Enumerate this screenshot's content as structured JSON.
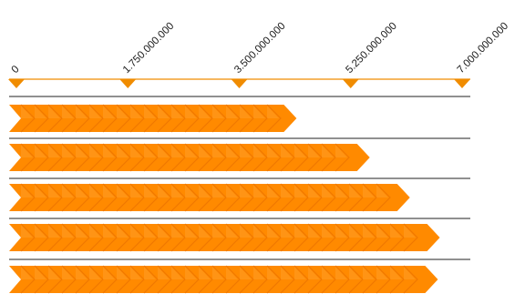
{
  "colors": {
    "bar": "#ff8a00",
    "bar_stroke": "#f07800",
    "chevron_light": "#ffa53c",
    "axis": "#f08c00",
    "rule": "#222222",
    "text": "#1a1a1a"
  },
  "chart_data": {
    "type": "bar",
    "orientation": "horizontal",
    "title": "",
    "xlabel": "",
    "ylabel": "",
    "xlim": [
      0,
      7000000000
    ],
    "axis_position": "top",
    "tick_values": [
      0,
      1750000000,
      3500000000,
      5250000000,
      7000000000
    ],
    "tick_labels": [
      "0",
      "1.750.000.000",
      "3.500.000.000",
      "5.250.000.000",
      "7.000.000.000"
    ],
    "categories": [
      "",
      "",
      "",
      "",
      ""
    ],
    "values": [
      4400000000,
      5550000000,
      6180000000,
      6650000000,
      6620000000
    ],
    "grid": false,
    "legend": "none"
  }
}
